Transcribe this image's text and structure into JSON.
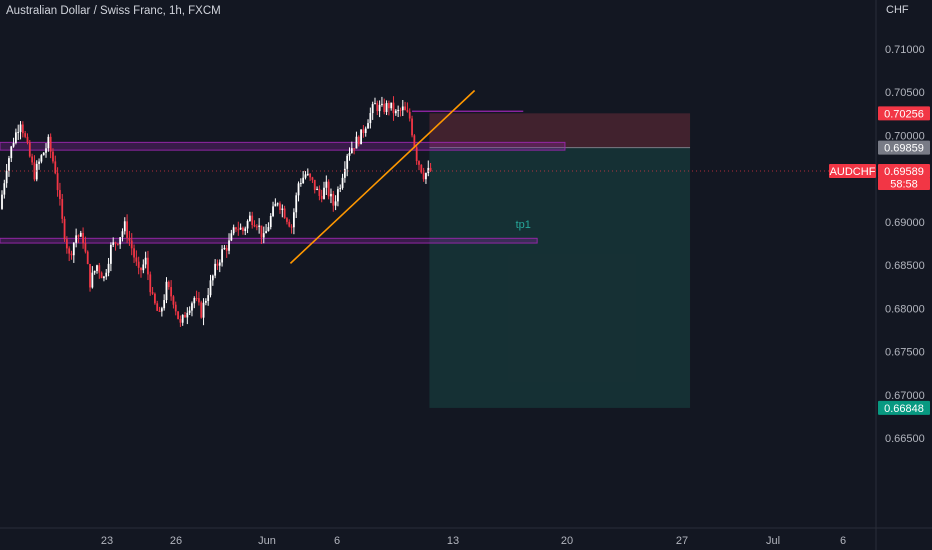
{
  "header": {
    "title": "Australian Dollar / Swiss Franc, 1h, FXCM",
    "currency": "CHF"
  },
  "colors": {
    "background": "#131722",
    "candle_up": "#ffffff",
    "candle_down": "#f23645",
    "zone": "#9c27b0",
    "trendline": "#ff9800",
    "stop_zone": "#4a2430",
    "target_zone": "#163336",
    "price_tag": "#f23645",
    "target_tag": "#089981",
    "entry_tag": "#787b86"
  },
  "chart_data": {
    "type": "candlestick",
    "symbol": "AUDCHF",
    "interval": "1h",
    "ylim": [
      0.6625,
      0.713
    ],
    "y_ticks": [
      "0.71000",
      "0.70500",
      "0.70000",
      "0.69500",
      "0.69000",
      "0.68500",
      "0.68000",
      "0.67500",
      "0.67000",
      "0.66500"
    ],
    "x_ticks": [
      "23",
      "26",
      "Jun",
      "6",
      "13",
      "20",
      "27",
      "Jul",
      "6"
    ],
    "series": [
      {
        "x": 0,
        "y": 0.6915
      },
      {
        "x": 1,
        "y": 0.6965
      },
      {
        "x": 2,
        "y": 0.6995
      },
      {
        "x": 3,
        "y": 0.7018
      },
      {
        "x": 4,
        "y": 0.6985
      },
      {
        "x": 5,
        "y": 0.6955
      },
      {
        "x": 6,
        "y": 0.6975
      },
      {
        "x": 7,
        "y": 0.6992
      },
      {
        "x": 8,
        "y": 0.696
      },
      {
        "x": 9,
        "y": 0.69
      },
      {
        "x": 10,
        "y": 0.686
      },
      {
        "x": 11,
        "y": 0.6885
      },
      {
        "x": 12,
        "y": 0.688
      },
      {
        "x": 13,
        "y": 0.683
      },
      {
        "x": 14,
        "y": 0.685
      },
      {
        "x": 15,
        "y": 0.6835
      },
      {
        "x": 16,
        "y": 0.687
      },
      {
        "x": 17,
        "y": 0.688
      },
      {
        "x": 18,
        "y": 0.6895
      },
      {
        "x": 19,
        "y": 0.687
      },
      {
        "x": 20,
        "y": 0.684
      },
      {
        "x": 21,
        "y": 0.6855
      },
      {
        "x": 22,
        "y": 0.681
      },
      {
        "x": 23,
        "y": 0.679
      },
      {
        "x": 24,
        "y": 0.6825
      },
      {
        "x": 25,
        "y": 0.681
      },
      {
        "x": 26,
        "y": 0.678
      },
      {
        "x": 27,
        "y": 0.68
      },
      {
        "x": 28,
        "y": 0.6812
      },
      {
        "x": 29,
        "y": 0.6795
      },
      {
        "x": 30,
        "y": 0.682
      },
      {
        "x": 31,
        "y": 0.6845
      },
      {
        "x": 32,
        "y": 0.6865
      },
      {
        "x": 33,
        "y": 0.6875
      },
      {
        "x": 34,
        "y": 0.6895
      },
      {
        "x": 35,
        "y": 0.689
      },
      {
        "x": 36,
        "y": 0.6905
      },
      {
        "x": 37,
        "y": 0.69
      },
      {
        "x": 38,
        "y": 0.688
      },
      {
        "x": 39,
        "y": 0.6905
      },
      {
        "x": 40,
        "y": 0.6925
      },
      {
        "x": 41,
        "y": 0.691
      },
      {
        "x": 42,
        "y": 0.6895
      },
      {
        "x": 43,
        "y": 0.6945
      },
      {
        "x": 44,
        "y": 0.6955
      },
      {
        "x": 45,
        "y": 0.6945
      },
      {
        "x": 46,
        "y": 0.693
      },
      {
        "x": 47,
        "y": 0.694
      },
      {
        "x": 48,
        "y": 0.692
      },
      {
        "x": 49,
        "y": 0.6945
      },
      {
        "x": 50,
        "y": 0.698
      },
      {
        "x": 51,
        "y": 0.699
      },
      {
        "x": 52,
        "y": 0.7
      },
      {
        "x": 53,
        "y": 0.702
      },
      {
        "x": 54,
        "y": 0.7035
      },
      {
        "x": 55,
        "y": 0.703
      },
      {
        "x": 56,
        "y": 0.7035
      },
      {
        "x": 57,
        "y": 0.7025
      },
      {
        "x": 58,
        "y": 0.703
      },
      {
        "x": 59,
        "y": 0.702
      },
      {
        "x": 60,
        "y": 0.6975
      },
      {
        "x": 61,
        "y": 0.6955
      },
      {
        "x": 62,
        "y": 0.6959
      }
    ],
    "annotations": {
      "zones": [
        {
          "top": 0.6992,
          "bottom": 0.6983,
          "x_end": 81
        },
        {
          "top": 0.6881,
          "bottom": 0.68755,
          "x_end": 77
        }
      ],
      "resistance_line": {
        "y": 0.7028,
        "x_start": 59,
        "x_end": 75
      },
      "trendline": {
        "x1": 41.5,
        "y1": 0.6852,
        "x2": 68,
        "y2": 0.7052
      },
      "position": {
        "x_start": 61.5,
        "x_end": 99,
        "entry": 0.69859,
        "stop": 0.70256,
        "target": 0.66848
      },
      "tp_label": "tp1",
      "tp_label_x": 75,
      "tp_label_y": 0.6893,
      "last_price": 0.69589
    },
    "price_labels": {
      "stop": "0.70256",
      "entry": "0.69859",
      "symbol": "AUDCHF",
      "last": "0.69589",
      "countdown": "58:58",
      "target": "0.66848"
    }
  }
}
